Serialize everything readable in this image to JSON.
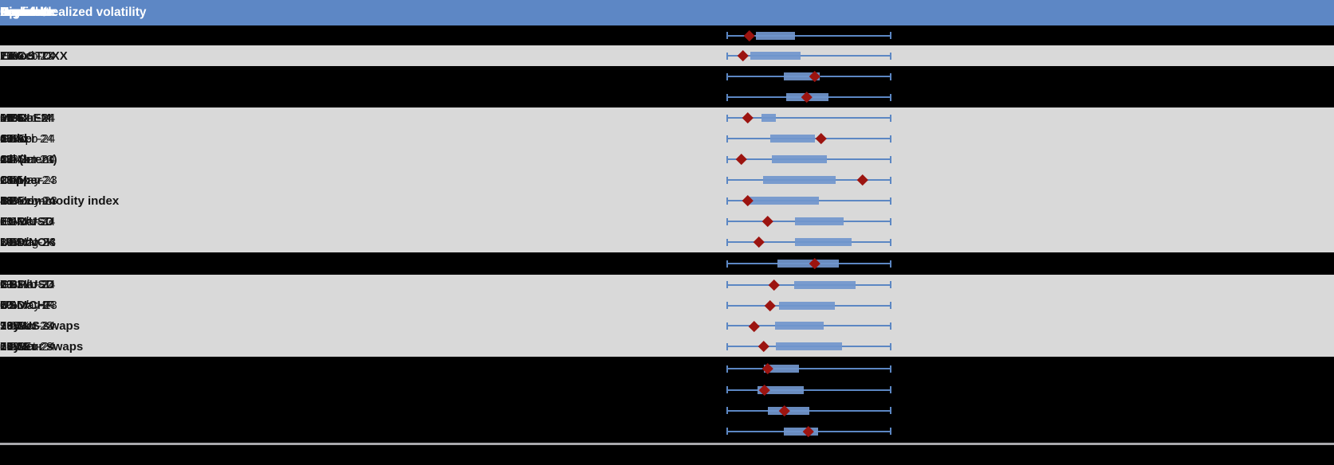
{
  "header": {
    "columns": [
      "Asset",
      "Current",
      "Low",
      "Low date",
      "High",
      "High date",
      "Upside",
      "Downside",
      "Implied/realized volatility"
    ]
  },
  "colors": {
    "header_bg": "#5d87c5",
    "header_text": "#ffffff",
    "data_row_bg": "#d9d9d9",
    "hidden_row_bg": "#000000",
    "box_fill": "#7196cc",
    "whisker_line": "#5c87c3",
    "current_marker": "#9c1410",
    "bottom_divider": "#a9a9ac",
    "cell_text": "#141414"
  },
  "rows": [
    {
      "hidden": true,
      "label": "",
      "current": "",
      "low": "",
      "low_date": "",
      "high": "",
      "high_date": "",
      "upside": "",
      "downside": "",
      "implied": ""
    },
    {
      "hidden": false,
      "label": "EuroSTOXX",
      "current": "13%",
      "low": "12%",
      "low_date": "27-Feb-24",
      "high": "19%",
      "high_date": "20-Oct-23",
      "upside": "7%",
      "downside": "1%",
      "implied": "1.00x"
    },
    {
      "hidden": true,
      "label": "",
      "current": "",
      "low": "",
      "low_date": "",
      "high": "",
      "high_date": "",
      "upside": "",
      "downside": "",
      "implied": ""
    },
    {
      "hidden": true,
      "label": "",
      "current": "",
      "low": "",
      "low_date": "",
      "high": "",
      "high_date": "",
      "upside": "",
      "downside": "",
      "implied": ""
    },
    {
      "hidden": false,
      "label": "MSCI EM",
      "current": "14%",
      "low": "11%",
      "low_date": "28-Mar-24",
      "high": "32%",
      "high_date": "26-Jan-24",
      "upside": "18%",
      "downside": "3%",
      "implied": "0.75x"
    },
    {
      "hidden": false,
      "label": "Gold",
      "current": "14%",
      "low": "10%",
      "low_date": "27-Feb-24",
      "high": "17%",
      "high_date": "15-Apr-24",
      "upside": "3%",
      "downside": "4%",
      "implied": "0.82x"
    },
    {
      "hidden": false,
      "label": "Oil (brent)",
      "current": "24%",
      "low": "22%",
      "low_date": "27-Mar-24",
      "high": "41%",
      "high_date": "13-Oct-23",
      "upside": "17%",
      "downside": "2%",
      "implied": "0.94x"
    },
    {
      "hidden": false,
      "label": "Copper",
      "current": "24%",
      "low": "15%",
      "low_date": "01-Mar-24",
      "high": "26%",
      "high_date": "25-May-23",
      "upside": "2%",
      "downside": "9%",
      "implied": "1.05x"
    },
    {
      "hidden": false,
      "label": "BB commodity index",
      "current": "14%",
      "low": "13%",
      "low_date": "16-Feb-24",
      "high": "18%",
      "high_date": "31-May-23",
      "upside": "4%",
      "downside": "1%",
      "implied": "1.26x"
    },
    {
      "hidden": false,
      "label": "EUR/USD",
      "current": "6%",
      "low": "5%",
      "low_date": "13-Mar-24",
      "high": "8%",
      "high_date": "20-Oct-23",
      "upside": "2%",
      "downside": "1%",
      "implied": "0.94x"
    },
    {
      "hidden": false,
      "label": "USD/NOK",
      "current": "10%",
      "low": "10%",
      "low_date": "29-Mar-24",
      "high": "14%",
      "high_date": "14-Aug-23",
      "upside": "3%",
      "downside": "1%",
      "implied": "1.01x"
    },
    {
      "hidden": true,
      "label": "",
      "current": "",
      "low": "",
      "low_date": "",
      "high": "",
      "high_date": "",
      "upside": "",
      "downside": "",
      "implied": ""
    },
    {
      "hidden": false,
      "label": "GBP/USD",
      "current": "7%",
      "low": "6%",
      "low_date": "13-Mar-24",
      "high": "9%",
      "high_date": "21-Jun-23",
      "upside": "2%",
      "downside": "1%",
      "implied": "0.92x"
    },
    {
      "hidden": false,
      "label": "USD/CHF",
      "current": "7%",
      "low": "6%",
      "low_date": "13-Mar-24",
      "high": "8%",
      "high_date": "10-May-23",
      "upside": "2%",
      "downside": "1%",
      "implied": "0.96x"
    },
    {
      "hidden": false,
      "label": "10y US swaps",
      "current": "99%",
      "low": "93%",
      "low_date": "28-Mar-24",
      "high": "135%",
      "high_date": "20-Oct-23",
      "upside": "36%",
      "downside": "7%",
      "implied": "1.03x"
    },
    {
      "hidden": false,
      "label": "10y Eur swaps",
      "current": "82%",
      "low": "74%",
      "low_date": "28-Mar-24",
      "high": "109%",
      "high_date": "10-Oct-23",
      "upside": "27%",
      "downside": "8%",
      "implied": "0.98x"
    },
    {
      "hidden": true,
      "label": "",
      "current": "",
      "low": "",
      "low_date": "",
      "high": "",
      "high_date": "",
      "upside": "",
      "downside": "",
      "implied": ""
    },
    {
      "hidden": true,
      "label": "",
      "current": "",
      "low": "",
      "low_date": "",
      "high": "",
      "high_date": "",
      "upside": "",
      "downside": "",
      "implied": ""
    },
    {
      "hidden": true,
      "label": "",
      "current": "",
      "low": "",
      "low_date": "",
      "high": "",
      "high_date": "",
      "upside": "",
      "downside": "",
      "implied": ""
    },
    {
      "hidden": true,
      "label": "",
      "current": "",
      "low": "",
      "low_date": "",
      "high": "",
      "high_date": "",
      "upside": "",
      "downside": "",
      "implied": ""
    }
  ],
  "chart_data": {
    "type": "box",
    "title": "",
    "description": "Horizontal box-and-whisker plot per row: whiskers span the full low-to-high volatility range (normalized 0-100), blue box marks the central range, dark-red diamond marks the current level.",
    "x_range_pct": [
      0,
      100
    ],
    "whiskers_full_span": true,
    "legend_position": "none",
    "grid": false,
    "series": [
      {
        "label": "",
        "box_low_pct": 17.6,
        "box_high_pct": 41.5,
        "marker_pct": 13.7
      },
      {
        "label": "EuroSTOXX",
        "box_low_pct": 14.1,
        "box_high_pct": 44.9,
        "marker_pct": 9.8
      },
      {
        "label": "",
        "box_low_pct": 34.6,
        "box_high_pct": 56.6,
        "marker_pct": 53.7
      },
      {
        "label": "",
        "box_low_pct": 36.1,
        "box_high_pct": 62.0,
        "marker_pct": 48.8
      },
      {
        "label": "MSCI EM",
        "box_low_pct": 21.0,
        "box_high_pct": 29.8,
        "marker_pct": 12.7
      },
      {
        "label": "Gold",
        "box_low_pct": 26.3,
        "box_high_pct": 53.7,
        "marker_pct": 57.6
      },
      {
        "label": "Oil (brent)",
        "box_low_pct": 27.3,
        "box_high_pct": 61.0,
        "marker_pct": 8.8
      },
      {
        "label": "Copper",
        "box_low_pct": 22.0,
        "box_high_pct": 66.3,
        "marker_pct": 82.9
      },
      {
        "label": "BB commodity index",
        "box_low_pct": 13.7,
        "box_high_pct": 56.1,
        "marker_pct": 12.7
      },
      {
        "label": "EUR/USD",
        "box_low_pct": 41.5,
        "box_high_pct": 71.2,
        "marker_pct": 24.9
      },
      {
        "label": "USD/NOK",
        "box_low_pct": 41.5,
        "box_high_pct": 76.1,
        "marker_pct": 19.5
      },
      {
        "label": "",
        "box_low_pct": 30.7,
        "box_high_pct": 68.3,
        "marker_pct": 53.7
      },
      {
        "label": "GBP/USD",
        "box_low_pct": 41.0,
        "box_high_pct": 78.5,
        "marker_pct": 28.8
      },
      {
        "label": "USD/CHF",
        "box_low_pct": 31.7,
        "box_high_pct": 65.9,
        "marker_pct": 26.3
      },
      {
        "label": "10y US swaps",
        "box_low_pct": 29.3,
        "box_high_pct": 59.0,
        "marker_pct": 16.6
      },
      {
        "label": "10y Eur swaps",
        "box_low_pct": 29.8,
        "box_high_pct": 70.2,
        "marker_pct": 22.4
      },
      {
        "label": "",
        "box_low_pct": 22.4,
        "box_high_pct": 43.9,
        "marker_pct": 24.9
      },
      {
        "label": "",
        "box_low_pct": 18.5,
        "box_high_pct": 46.8,
        "marker_pct": 22.9
      },
      {
        "label": "",
        "box_low_pct": 24.9,
        "box_high_pct": 50.2,
        "marker_pct": 35.1
      },
      {
        "label": "",
        "box_low_pct": 34.6,
        "box_high_pct": 55.6,
        "marker_pct": 49.8
      }
    ]
  }
}
